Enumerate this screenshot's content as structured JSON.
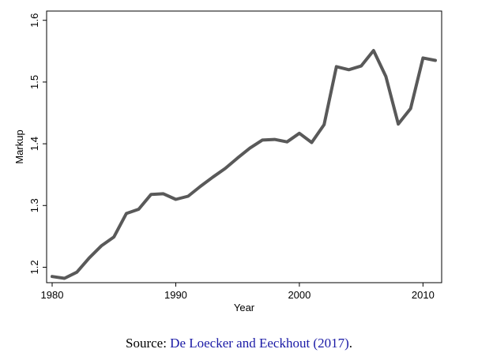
{
  "chart_data": {
    "type": "line",
    "title": "",
    "xlabel": "Year",
    "ylabel": "Markup",
    "xlim": [
      1980,
      2011
    ],
    "ylim": [
      1.175,
      1.615
    ],
    "xticks": [
      1980,
      1990,
      2000,
      2010
    ],
    "yticks": [
      1.2,
      1.3,
      1.4,
      1.5,
      1.6
    ],
    "ytick_labels": [
      "1.2",
      "1.3",
      "1.4",
      "1.5",
      "1.6"
    ],
    "grid": false,
    "series": [
      {
        "name": "Markup",
        "color": "#595959",
        "x": [
          1980,
          1981,
          1982,
          1983,
          1984,
          1985,
          1986,
          1987,
          1988,
          1989,
          1990,
          1991,
          1992,
          1993,
          1994,
          1995,
          1996,
          1997,
          1998,
          1999,
          2000,
          2001,
          2002,
          2003,
          2004,
          2005,
          2006,
          2007,
          2008,
          2009,
          2010,
          2011
        ],
        "values": [
          1.185,
          1.182,
          1.192,
          1.215,
          1.235,
          1.249,
          1.287,
          1.294,
          1.318,
          1.319,
          1.31,
          1.315,
          1.331,
          1.346,
          1.36,
          1.377,
          1.393,
          1.406,
          1.407,
          1.403,
          1.417,
          1.402,
          1.431,
          1.525,
          1.52,
          1.526,
          1.551,
          1.509,
          1.432,
          1.457,
          1.539,
          1.535
        ]
      }
    ]
  },
  "source": {
    "prefix": "Source: ",
    "reference": "De Loecker and Eeckhout (2017)",
    "suffix": "."
  }
}
